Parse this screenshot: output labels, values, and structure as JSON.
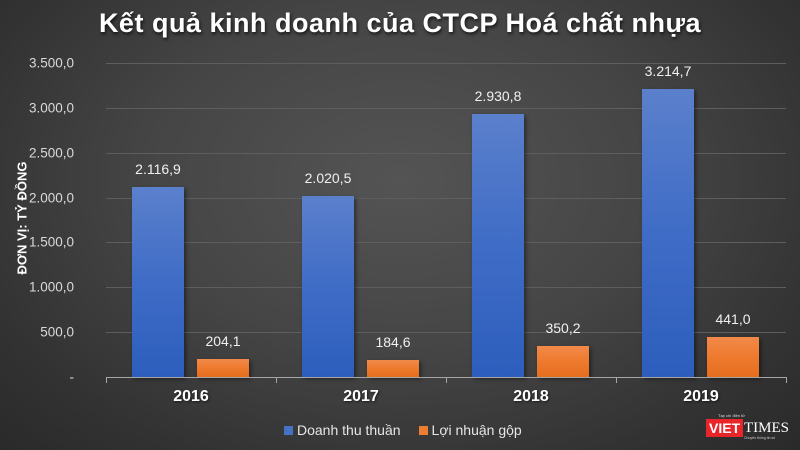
{
  "chart_data": {
    "type": "bar",
    "title": "Kết quả kinh doanh của CTCP Hoá chất nhựa",
    "xlabel": "",
    "ylabel": "ĐƠN VỊ: TỶ ĐỒNG",
    "categories": [
      "2016",
      "2017",
      "2018",
      "2019"
    ],
    "series": [
      {
        "name": "Doanh thu thuần",
        "color": "#4472c4",
        "values": [
          2116.9,
          2020.5,
          2930.8,
          3214.7
        ],
        "labels": [
          "2.116,9",
          "2.020,5",
          "2.930,8",
          "3.214,7"
        ]
      },
      {
        "name": "Lợi nhuận gộp",
        "color": "#ed7d31",
        "values": [
          204.1,
          184.6,
          350.2,
          441.0
        ],
        "labels": [
          "204,1",
          "184,6",
          "350,2",
          "441,0"
        ]
      }
    ],
    "ylim": [
      0,
      3500
    ],
    "yticks": [
      "-",
      "500,0",
      "1.000,0",
      "1.500,0",
      "2.000,0",
      "2.500,0",
      "3.000,0",
      "3.500,0"
    ],
    "grid": true,
    "legend_position": "bottom"
  },
  "watermark": {
    "brand_red": "VIET",
    "brand_white": "TIMES",
    "tagline_top": "Tạp chí điện tử",
    "tagline_bottom": "Chuyên thông tin số"
  }
}
